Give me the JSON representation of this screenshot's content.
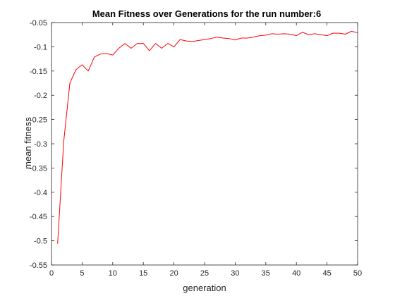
{
  "chart_data": {
    "type": "line",
    "title": "Mean Fitness over Generations for the run number:6",
    "xlabel": "generation",
    "ylabel": "mean fitness",
    "xlim": [
      0,
      50
    ],
    "ylim": [
      -0.55,
      -0.05
    ],
    "xticks": [
      0,
      5,
      10,
      15,
      20,
      25,
      30,
      35,
      40,
      45,
      50
    ],
    "xtick_labels": [
      "0",
      "5",
      "10",
      "15",
      "20",
      "25",
      "30",
      "35",
      "40",
      "45",
      "50"
    ],
    "yticks": [
      -0.05,
      -0.1,
      -0.15,
      -0.2,
      -0.25,
      -0.3,
      -0.35,
      -0.4,
      -0.45,
      -0.5,
      -0.55
    ],
    "ytick_labels": [
      "-0.05",
      "-0.1",
      "-0.15",
      "-0.2",
      "-0.25",
      "-0.3",
      "-0.35",
      "-0.4",
      "-0.45",
      "-0.5",
      "-0.55"
    ],
    "grid": false,
    "legend": "none",
    "line_color": "#ff0000",
    "axis_color": "#262626",
    "series": [
      {
        "x": [
          1,
          2,
          3,
          4,
          5,
          6,
          7,
          8,
          9,
          10,
          11,
          12,
          13,
          14,
          15,
          16,
          17,
          18,
          19,
          20,
          21,
          22,
          23,
          24,
          25,
          26,
          27,
          28,
          29,
          30,
          31,
          32,
          33,
          34,
          35,
          36,
          37,
          38,
          39,
          40,
          41,
          42,
          43,
          44,
          45,
          46,
          47,
          48,
          49,
          50
        ],
        "values": [
          -0.506,
          -0.295,
          -0.175,
          -0.147,
          -0.137,
          -0.15,
          -0.121,
          -0.115,
          -0.114,
          -0.117,
          -0.103,
          -0.093,
          -0.103,
          -0.093,
          -0.093,
          -0.108,
          -0.093,
          -0.103,
          -0.093,
          -0.1,
          -0.085,
          -0.088,
          -0.089,
          -0.087,
          -0.085,
          -0.083,
          -0.08,
          -0.082,
          -0.083,
          -0.086,
          -0.082,
          -0.082,
          -0.08,
          -0.077,
          -0.076,
          -0.073,
          -0.074,
          -0.073,
          -0.074,
          -0.077,
          -0.07,
          -0.075,
          -0.073,
          -0.075,
          -0.077,
          -0.072,
          -0.072,
          -0.074,
          -0.068,
          -0.071
        ]
      }
    ]
  }
}
